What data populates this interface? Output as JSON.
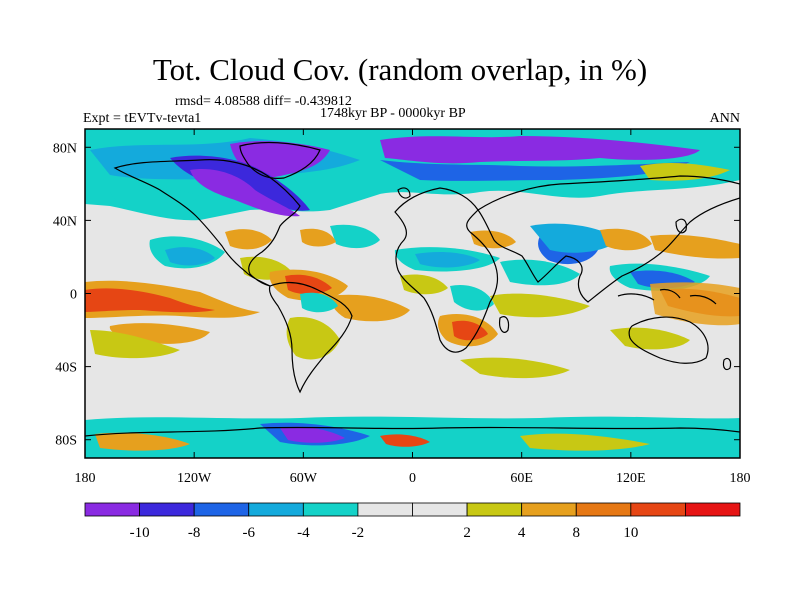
{
  "title": "Tot. Cloud Cov. (random overlap, in %)",
  "stats": "rmsd= 4.08588 diff= -0.439812",
  "period": "1748kyr BP - 0000kyr BP",
  "expt": "Expt = tEVTv-tevta1",
  "season": "ANN",
  "map": {
    "projection": "cylindrical-equidistant",
    "lon_range": [
      -180,
      180
    ],
    "lat_range": [
      -90,
      90
    ],
    "background_color": "#e6e6e6",
    "lat_ticks": [
      {
        "value": 80,
        "label": "80N"
      },
      {
        "value": 40,
        "label": "40N"
      },
      {
        "value": 0,
        "label": "0"
      },
      {
        "value": -40,
        "label": "40S"
      },
      {
        "value": -80,
        "label": "80S"
      }
    ],
    "lon_ticks": [
      {
        "value": -180,
        "label": "180"
      },
      {
        "value": -120,
        "label": "120W"
      },
      {
        "value": -60,
        "label": "60W"
      },
      {
        "value": 0,
        "label": "0"
      },
      {
        "value": 60,
        "label": "60E"
      },
      {
        "value": 120,
        "label": "120E"
      },
      {
        "value": 180,
        "label": "180"
      }
    ]
  },
  "colorbar": {
    "colors": [
      "#8a2be2",
      "#3c28dc",
      "#1e64e6",
      "#14aadc",
      "#14d2c8",
      "#e6e6e6",
      "#e6e6e6",
      "#c8c814",
      "#e6a01e",
      "#e67814",
      "#e64614",
      "#e61414"
    ],
    "labels": [
      "-10",
      "-8",
      "-6",
      "-4",
      "-2",
      "2",
      "4",
      "8",
      "10"
    ]
  }
}
